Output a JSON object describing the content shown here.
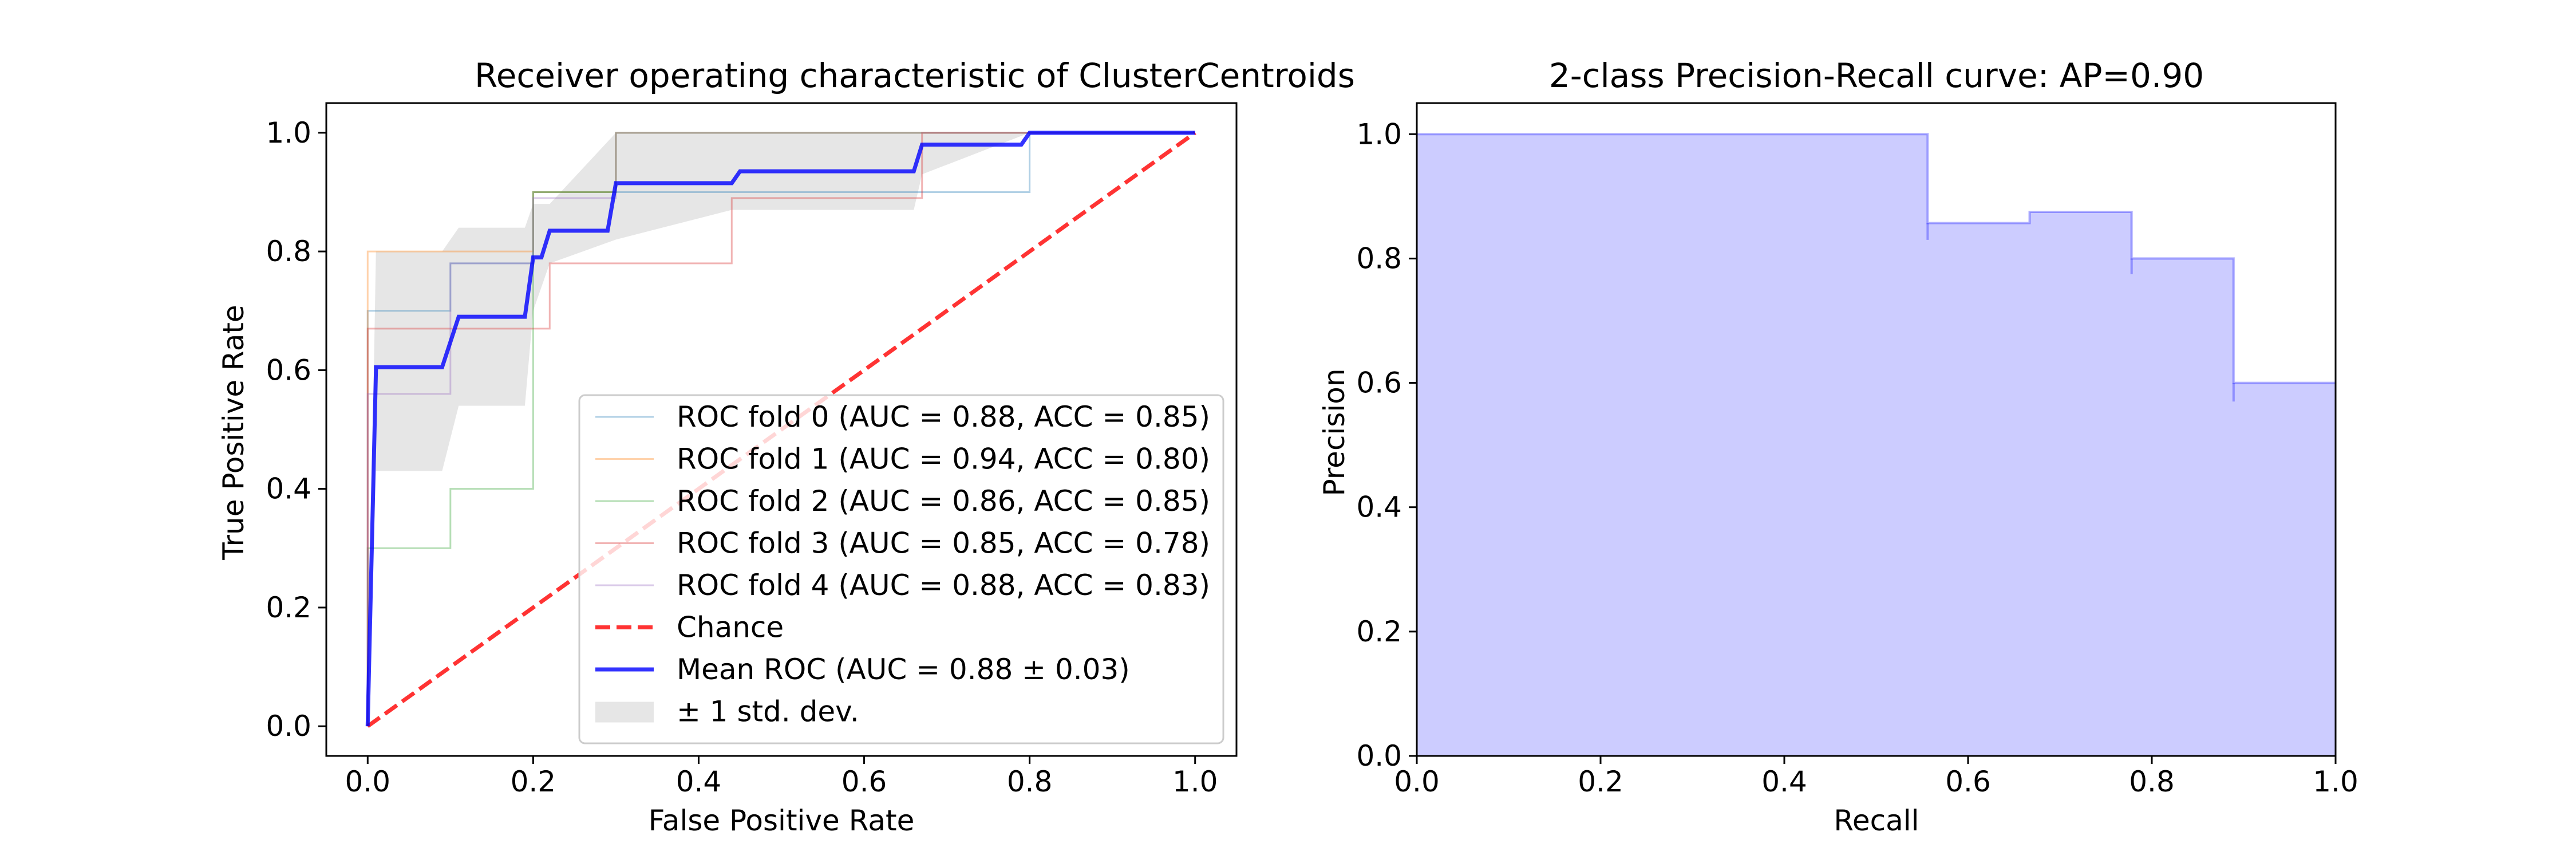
{
  "chart_data": [
    {
      "type": "line",
      "title": "Receiver operating characteristic of ClusterCentroids",
      "xlabel": "False Positive Rate",
      "ylabel": "True Positive Rate",
      "xlim": [
        -0.05,
        1.05
      ],
      "ylim": [
        -0.05,
        1.05
      ],
      "xticks": [
        0.0,
        0.2,
        0.4,
        0.6,
        0.8,
        1.0
      ],
      "yticks": [
        0.0,
        0.2,
        0.4,
        0.6,
        0.8,
        1.0
      ],
      "xtick_labels": [
        "0.0",
        "0.2",
        "0.4",
        "0.6",
        "0.8",
        "1.0"
      ],
      "ytick_labels": [
        "0.0",
        "0.2",
        "0.4",
        "0.6",
        "0.8",
        "1.0"
      ],
      "grid": false,
      "legend_position": "lower-right",
      "series": [
        {
          "name": "ROC fold 0 (AUC = 0.88, ACC = 0.85)",
          "color": "#1f77b4",
          "style": "thin",
          "x": [
            0,
            0,
            0.1,
            0.1,
            0.2,
            0.2,
            0.3,
            0.3,
            0.8,
            0.8,
            1
          ],
          "y": [
            0,
            0.7,
            0.7,
            0.78,
            0.78,
            0.9,
            0.9,
            0.9,
            0.9,
            1.0,
            1.0
          ]
        },
        {
          "name": "ROC fold 1 (AUC = 0.94, ACC = 0.80)",
          "color": "#ff7f0e",
          "style": "thin",
          "x": [
            0,
            0,
            0.1,
            0.1,
            0.2,
            0.2,
            0.3,
            0.3,
            1
          ],
          "y": [
            0,
            0.8,
            0.8,
            0.8,
            0.8,
            0.9,
            0.9,
            1.0,
            1.0
          ]
        },
        {
          "name": "ROC fold 2 (AUC = 0.86, ACC = 0.85)",
          "color": "#2ca02c",
          "style": "thin",
          "x": [
            0,
            0,
            0.1,
            0.1,
            0.2,
            0.2,
            0.3,
            0.3,
            1
          ],
          "y": [
            0,
            0.3,
            0.3,
            0.4,
            0.4,
            0.9,
            0.9,
            1.0,
            1.0
          ]
        },
        {
          "name": "ROC fold 3 (AUC = 0.85, ACC = 0.78)",
          "color": "#d62728",
          "style": "thin",
          "x": [
            0,
            0,
            0.22,
            0.22,
            0.44,
            0.44,
            0.67,
            0.67,
            1
          ],
          "y": [
            0,
            0.67,
            0.67,
            0.78,
            0.78,
            0.89,
            0.89,
            1.0,
            1.0
          ]
        },
        {
          "name": "ROC fold 4 (AUC = 0.88, ACC = 0.83)",
          "color": "#9467bd",
          "style": "thin",
          "x": [
            0,
            0,
            0.1,
            0.1,
            0.2,
            0.2,
            0.3,
            0.3,
            0.67,
            0.67,
            1
          ],
          "y": [
            0,
            0.56,
            0.56,
            0.78,
            0.78,
            0.89,
            0.89,
            1.0,
            1.0,
            1.0,
            1.0
          ]
        },
        {
          "name": "Chance",
          "color": "#ff0000",
          "style": "dashed",
          "x": [
            0,
            1
          ],
          "y": [
            0,
            1
          ]
        },
        {
          "name": "Mean ROC (AUC = 0.88 ± 0.03)",
          "color": "#0000ff",
          "style": "thick",
          "x": [
            0,
            0.01,
            0.01,
            0.09,
            0.11,
            0.19,
            0.2,
            0.21,
            0.22,
            0.29,
            0.3,
            0.44,
            0.45,
            0.66,
            0.67,
            0.79,
            0.8,
            1.0
          ],
          "y": [
            0,
            0.6,
            0.605,
            0.605,
            0.69,
            0.69,
            0.79,
            0.79,
            0.835,
            0.835,
            0.915,
            0.915,
            0.935,
            0.935,
            0.98,
            0.98,
            1.0,
            1.0
          ]
        }
      ],
      "band": {
        "name": "± 1 std. dev.",
        "color": "#808080",
        "x": [
          0,
          0.01,
          0.09,
          0.11,
          0.19,
          0.2,
          0.22,
          0.3,
          0.44,
          0.45,
          0.66,
          0.67,
          0.8,
          1.0
        ],
        "upper": [
          0.0,
          0.8,
          0.8,
          0.84,
          0.84,
          0.88,
          0.88,
          1.0,
          1.0,
          1.0,
          1.0,
          1.0,
          1.0,
          1.0
        ],
        "lower": [
          0.0,
          0.43,
          0.43,
          0.54,
          0.54,
          0.7,
          0.78,
          0.82,
          0.87,
          0.87,
          0.87,
          0.93,
          1.0,
          1.0
        ]
      }
    },
    {
      "type": "area",
      "title": "2-class Precision-Recall curve: AP=0.90",
      "xlabel": "Recall",
      "ylabel": "Precision",
      "xlim": [
        0.0,
        1.0
      ],
      "ylim": [
        0.0,
        1.05
      ],
      "xticks": [
        0.0,
        0.2,
        0.4,
        0.6,
        0.8,
        1.0
      ],
      "yticks": [
        0.0,
        0.2,
        0.4,
        0.6,
        0.8,
        1.0
      ],
      "xtick_labels": [
        "0.0",
        "0.2",
        "0.4",
        "0.6",
        "0.8",
        "1.0"
      ],
      "ytick_labels": [
        "0.0",
        "0.2",
        "0.4",
        "0.6",
        "0.8",
        "1.0"
      ],
      "grid": false,
      "color": "#0000ff",
      "steps": [
        {
          "recall": 0.0,
          "precision": 1.0
        },
        {
          "recall": 0.556,
          "precision": 0.857
        },
        {
          "recall": 0.667,
          "precision": 0.875
        },
        {
          "recall": 0.778,
          "precision": 0.8
        },
        {
          "recall": 0.889,
          "precision": 0.6
        },
        {
          "recall": 1.0,
          "precision": 0.6
        }
      ],
      "ticks_at_drops": [
        {
          "recall": 0.556,
          "low": 0.83
        },
        {
          "recall": 0.778,
          "low": 0.775
        },
        {
          "recall": 0.889,
          "low": 0.57
        }
      ]
    }
  ]
}
